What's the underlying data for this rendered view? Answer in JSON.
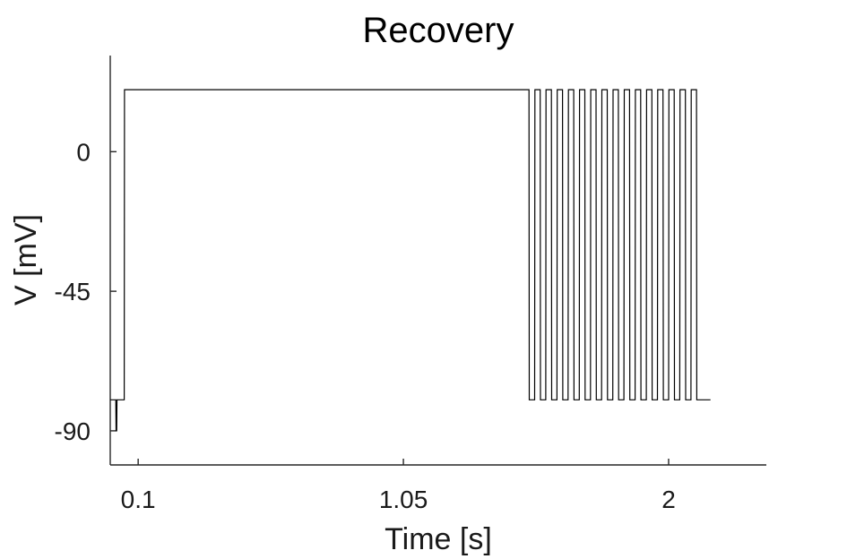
{
  "chart_data": {
    "type": "line",
    "title": "Recovery",
    "xlabel": "Time [s]",
    "ylabel": "V [mV]",
    "xlim": [
      0.0,
      2.35
    ],
    "ylim": [
      -101,
      31
    ],
    "xticks": [
      0.1,
      1.05,
      2
    ],
    "xtick_labels": [
      "0.1",
      "1.05",
      "2"
    ],
    "yticks": [
      -90,
      -45,
      0
    ],
    "ytick_labels": [
      "-90",
      "-45",
      "0"
    ],
    "grid": false,
    "legend": "none",
    "series": [
      {
        "color": "#000000",
        "x": [
          0.0,
          0.02,
          0.021,
          0.023,
          0.024,
          0.05,
          0.051,
          1.5,
          1.501,
          1.52,
          1.521,
          1.54,
          1.541,
          1.56,
          1.561,
          1.58,
          1.581,
          1.6,
          1.601,
          1.62,
          1.621,
          1.64,
          1.641,
          1.66,
          1.661,
          1.68,
          1.681,
          1.7,
          1.701,
          1.72,
          1.721,
          1.74,
          1.741,
          1.76,
          1.761,
          1.78,
          1.781,
          1.8,
          1.801,
          1.82,
          1.821,
          1.84,
          1.841,
          1.86,
          1.861,
          1.88,
          1.881,
          1.9,
          1.901,
          1.92,
          1.921,
          1.94,
          1.941,
          1.96,
          1.961,
          1.98,
          1.981,
          2.0,
          2.001,
          2.02,
          2.021,
          2.04,
          2.041,
          2.06,
          2.061,
          2.08,
          2.081,
          2.1,
          2.101,
          2.15
        ],
        "y": [
          -80,
          -80,
          -90,
          -90,
          -80,
          -80,
          20,
          20,
          -80,
          -80,
          20,
          20,
          -80,
          -80,
          20,
          20,
          -80,
          -80,
          20,
          20,
          -80,
          -80,
          20,
          20,
          -80,
          -80,
          20,
          20,
          -80,
          -80,
          20,
          20,
          -80,
          -80,
          20,
          20,
          -80,
          -80,
          20,
          20,
          -80,
          -80,
          20,
          20,
          -80,
          -80,
          20,
          20,
          -80,
          -80,
          20,
          20,
          -80,
          -80,
          20,
          20,
          -80,
          -80,
          20,
          20,
          -80,
          -80,
          20,
          20,
          -80,
          -80,
          20,
          20,
          -80,
          -80
        ]
      }
    ]
  }
}
